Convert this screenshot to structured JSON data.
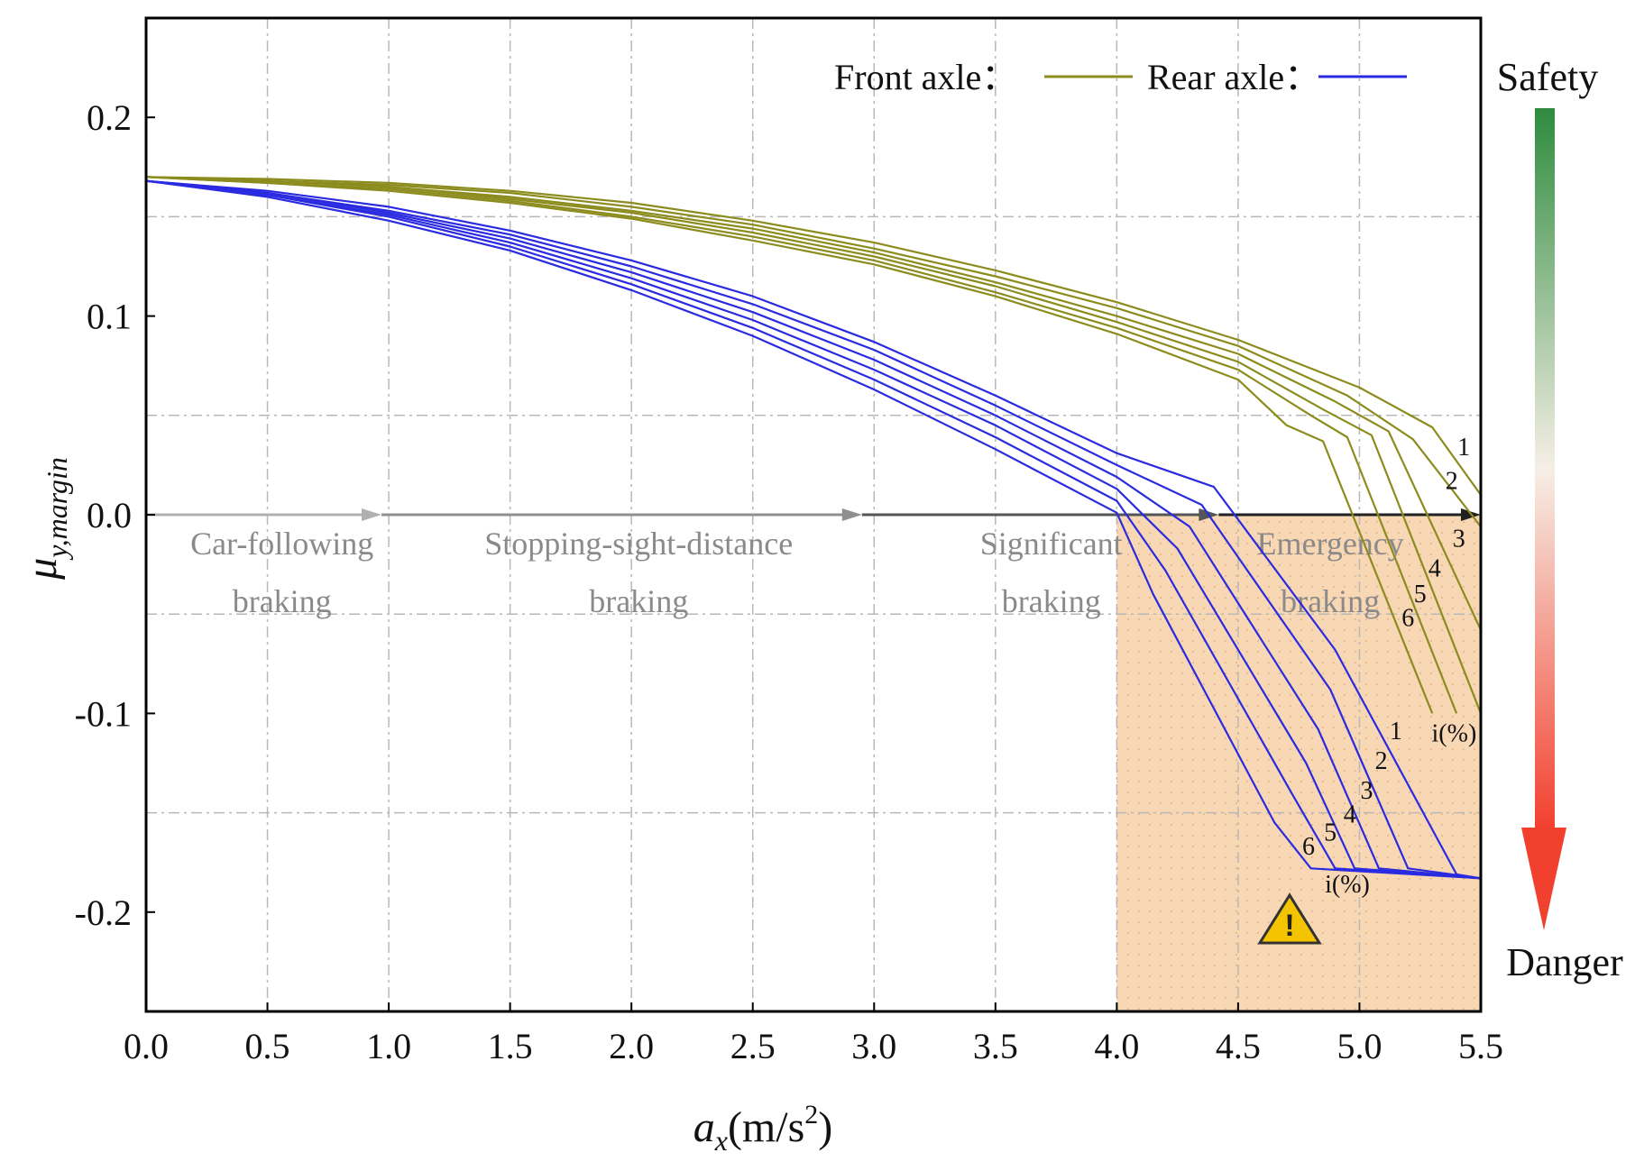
{
  "chart_data": {
    "type": "line",
    "xlabel": "a",
    "xlabel_sub": "x",
    "xlabel_unit": "(m/s",
    "xlabel_sup": "2",
    "xlabel_close": ")",
    "ylabel": "μ",
    "ylabel_sub": "y,margin",
    "xlim": [
      0,
      5.5
    ],
    "ylim": [
      -0.25,
      0.25
    ],
    "x_ticks": [
      0.0,
      0.5,
      1.0,
      1.5,
      2.0,
      2.5,
      3.0,
      3.5,
      4.0,
      4.5,
      5.0,
      5.5
    ],
    "x_tick_labels": [
      "0.0",
      "0.5",
      "1.0",
      "1.5",
      "2.0",
      "2.5",
      "3.0",
      "3.5",
      "4.0",
      "4.5",
      "5.0",
      "5.5"
    ],
    "y_ticks": [
      0.2,
      0.1,
      0.0,
      -0.1,
      -0.2
    ],
    "y_tick_labels": [
      "0.2",
      "0.1",
      "0.0",
      "-0.1",
      "-0.2"
    ],
    "grid": true,
    "legend": {
      "placement": "top-right",
      "front_label": "Front axle：",
      "rear_label": "Rear axle：",
      "front_color": "#8c8c1e",
      "rear_color": "#2a2ae0"
    },
    "danger_region": {
      "x_from": 4.0,
      "x_to": 5.5,
      "y_from": -0.25,
      "y_to": 0.0,
      "color": "#f8d7b4"
    },
    "phases": [
      {
        "lines": [
          "Car-following",
          "braking"
        ],
        "x": 0.56,
        "color": "#c4c4c4"
      },
      {
        "lines": [
          "Stopping-sight-distance",
          "braking"
        ],
        "x": 2.03,
        "color": "#8a8a8a"
      },
      {
        "lines": [
          "Significant",
          "braking"
        ],
        "x": 3.73,
        "color": "#555555"
      },
      {
        "lines": [
          "Emergency",
          "braking"
        ],
        "x": 4.88,
        "color": "#333333"
      }
    ],
    "phase_arrows_x": [
      0.97,
      2.95,
      4.42,
      5.5
    ],
    "series": [
      {
        "name": "Front axle i=1",
        "axle": "front",
        "x": [
          0,
          0.5,
          1,
          1.5,
          2,
          2.5,
          3,
          3.5,
          4,
          4.5,
          5,
          5.3,
          5.5
        ],
        "y": [
          0.17,
          0.169,
          0.167,
          0.163,
          0.157,
          0.148,
          0.137,
          0.123,
          0.107,
          0.088,
          0.064,
          0.044,
          0.01
        ]
      },
      {
        "name": "Front axle i=2",
        "axle": "front",
        "x": [
          0,
          0.5,
          1,
          1.5,
          2,
          2.5,
          3,
          3.5,
          4,
          4.5,
          4.95,
          5.22,
          5.5
        ],
        "y": [
          0.17,
          0.168,
          0.166,
          0.162,
          0.155,
          0.146,
          0.134,
          0.12,
          0.104,
          0.085,
          0.06,
          0.038,
          -0.006
        ]
      },
      {
        "name": "Front axle i=3",
        "axle": "front",
        "x": [
          0,
          0.5,
          1,
          1.5,
          2,
          2.5,
          3,
          3.5,
          4,
          4.5,
          4.9,
          5.12,
          5.5
        ],
        "y": [
          0.17,
          0.168,
          0.165,
          0.16,
          0.153,
          0.144,
          0.132,
          0.117,
          0.1,
          0.081,
          0.057,
          0.042,
          -0.058
        ]
      },
      {
        "name": "Front axle i=4",
        "axle": "front",
        "x": [
          0,
          0.5,
          1,
          1.5,
          2,
          2.5,
          3,
          3.5,
          4,
          4.5,
          4.85,
          5.05,
          5.5
        ],
        "y": [
          0.17,
          0.168,
          0.165,
          0.159,
          0.152,
          0.142,
          0.13,
          0.115,
          0.097,
          0.077,
          0.053,
          0.04,
          -0.1
        ]
      },
      {
        "name": "Front axle i=5",
        "axle": "front",
        "x": [
          0,
          0.5,
          1,
          1.5,
          2,
          2.5,
          3,
          3.5,
          4,
          4.5,
          4.8,
          4.95,
          5.4
        ],
        "y": [
          0.17,
          0.167,
          0.164,
          0.158,
          0.15,
          0.14,
          0.128,
          0.112,
          0.094,
          0.073,
          0.05,
          0.039,
          -0.1
        ]
      },
      {
        "name": "Front axle i=6",
        "axle": "front",
        "x": [
          0,
          0.5,
          1,
          1.5,
          2,
          2.5,
          3,
          3.5,
          4,
          4.5,
          4.7,
          4.85,
          5.3
        ],
        "y": [
          0.17,
          0.167,
          0.163,
          0.157,
          0.149,
          0.138,
          0.126,
          0.11,
          0.091,
          0.068,
          0.045,
          0.037,
          -0.1
        ]
      },
      {
        "name": "Rear axle i=1",
        "axle": "rear",
        "x": [
          0,
          0.5,
          1,
          1.5,
          2,
          2.5,
          3,
          3.5,
          4,
          4.4,
          4.9,
          5.4,
          5.5
        ],
        "y": [
          0.168,
          0.163,
          0.155,
          0.143,
          0.128,
          0.11,
          0.087,
          0.06,
          0.031,
          0.014,
          -0.068,
          -0.181,
          -0.183
        ]
      },
      {
        "name": "Rear axle i=2",
        "axle": "rear",
        "x": [
          0,
          0.5,
          1,
          1.5,
          2,
          2.5,
          3,
          3.5,
          4,
          4.35,
          4.88,
          5.2,
          5.5
        ],
        "y": [
          0.168,
          0.162,
          0.153,
          0.141,
          0.125,
          0.106,
          0.083,
          0.055,
          0.025,
          0.005,
          -0.088,
          -0.178,
          -0.183
        ]
      },
      {
        "name": "Rear axle i=3",
        "axle": "rear",
        "x": [
          0,
          0.5,
          1,
          1.5,
          2,
          2.5,
          3,
          3.5,
          4,
          4.3,
          4.83,
          5.08,
          5.5
        ],
        "y": [
          0.168,
          0.162,
          0.152,
          0.139,
          0.122,
          0.102,
          0.078,
          0.05,
          0.019,
          -0.006,
          -0.108,
          -0.178,
          -0.183
        ]
      },
      {
        "name": "Rear axle i=4",
        "axle": "rear",
        "x": [
          0,
          0.5,
          1,
          1.5,
          2,
          2.5,
          3,
          3.5,
          4,
          4.25,
          4.78,
          4.98,
          5.5
        ],
        "y": [
          0.168,
          0.161,
          0.151,
          0.137,
          0.119,
          0.098,
          0.073,
          0.045,
          0.013,
          -0.017,
          -0.125,
          -0.178,
          -0.183
        ]
      },
      {
        "name": "Rear axle i=5",
        "axle": "rear",
        "x": [
          0,
          0.5,
          1,
          1.5,
          2,
          2.5,
          3,
          3.5,
          4,
          4.2,
          4.72,
          4.9,
          5.5
        ],
        "y": [
          0.168,
          0.161,
          0.15,
          0.135,
          0.116,
          0.094,
          0.068,
          0.039,
          0.007,
          -0.028,
          -0.14,
          -0.178,
          -0.183
        ]
      },
      {
        "name": "Rear axle i=6",
        "axle": "rear",
        "x": [
          0,
          0.5,
          1,
          1.5,
          2,
          2.5,
          3,
          3.5,
          4,
          4.15,
          4.65,
          4.8,
          5.5
        ],
        "y": [
          0.168,
          0.16,
          0.148,
          0.133,
          0.113,
          0.09,
          0.063,
          0.033,
          0.001,
          -0.04,
          -0.155,
          -0.178,
          -0.183
        ]
      }
    ],
    "front_curve_labels": [
      {
        "text": "1",
        "x": 5.43,
        "y": 0.03
      },
      {
        "text": "2",
        "x": 5.38,
        "y": 0.013
      },
      {
        "text": "3",
        "x": 5.41,
        "y": -0.016
      },
      {
        "text": "4",
        "x": 5.31,
        "y": -0.031
      },
      {
        "text": "5",
        "x": 5.25,
        "y": -0.044
      },
      {
        "text": "6",
        "x": 5.2,
        "y": -0.056
      }
    ],
    "front_index_label": {
      "text": "i(%)",
      "x": 5.39,
      "y": -0.114
    },
    "rear_curve_labels": [
      {
        "text": "1",
        "x": 5.15,
        "y": -0.113
      },
      {
        "text": "2",
        "x": 5.09,
        "y": -0.128
      },
      {
        "text": "3",
        "x": 5.03,
        "y": -0.143
      },
      {
        "text": "4",
        "x": 4.96,
        "y": -0.155
      },
      {
        "text": "5",
        "x": 4.88,
        "y": -0.164
      },
      {
        "text": "6",
        "x": 4.79,
        "y": -0.171
      }
    ],
    "rear_index_label": {
      "text": "i(%)",
      "x": 4.95,
      "y": -0.19
    },
    "warning_icon_text": "!",
    "scale_bar": {
      "top_label": "Safety",
      "bottom_label": "Danger",
      "top_color": "#2e8b3e",
      "bottom_color": "#f2402f"
    }
  }
}
